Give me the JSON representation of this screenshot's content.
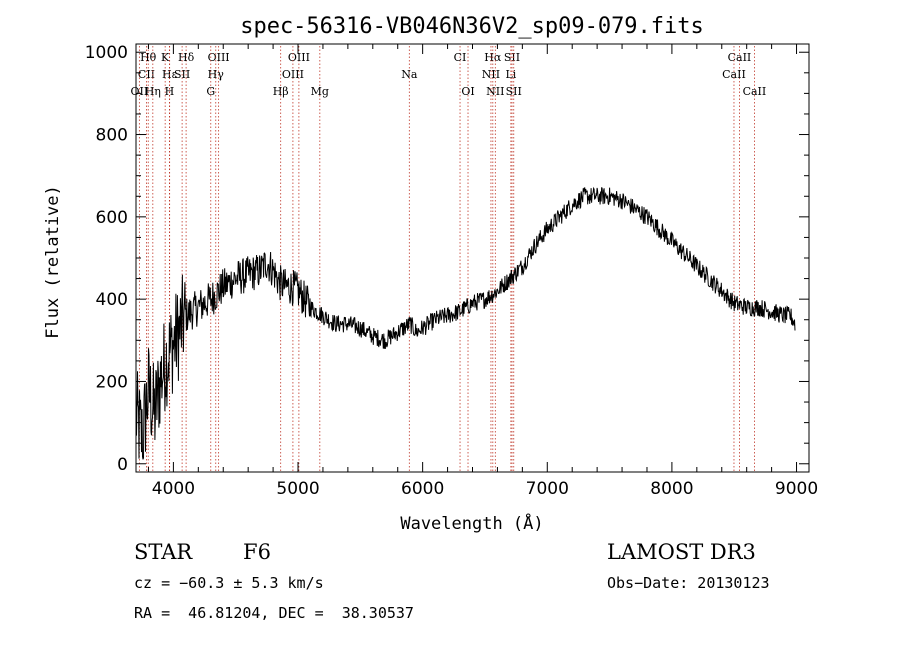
{
  "chart_data": {
    "type": "line",
    "title": "spec-56316-VB046N36V2_sp09-079.fits",
    "xlabel": "Wavelength (Å)",
    "ylabel": "Flux (relative)",
    "xlim": [
      3700,
      9100
    ],
    "ylim": [
      -20,
      1020
    ],
    "x_ticks": [
      4000,
      5000,
      6000,
      7000,
      8000,
      9000
    ],
    "y_ticks": [
      0,
      200,
      400,
      600,
      800,
      1000
    ],
    "series": [
      {
        "name": "flux",
        "x": [
          3700,
          3750,
          3800,
          3850,
          3900,
          3950,
          4000,
          4100,
          4200,
          4300,
          4400,
          4500,
          4600,
          4700,
          4750,
          4800,
          4850,
          4900,
          4950,
          5000,
          5100,
          5200,
          5300,
          5400,
          5500,
          5600,
          5700,
          5800,
          5900,
          5950,
          6000,
          6100,
          6200,
          6300,
          6400,
          6500,
          6600,
          6700,
          6800,
          6900,
          7000,
          7100,
          7200,
          7300,
          7400,
          7500,
          7600,
          7700,
          7800,
          7900,
          8000,
          8100,
          8200,
          8300,
          8400,
          8500,
          8600,
          8700,
          8800,
          8900,
          8950,
          8990
        ],
        "y": [
          120,
          60,
          180,
          120,
          210,
          260,
          290,
          360,
          380,
          400,
          430,
          450,
          460,
          470,
          490,
          470,
          440,
          430,
          430,
          420,
          380,
          360,
          340,
          340,
          330,
          310,
          300,
          320,
          340,
          320,
          330,
          350,
          360,
          370,
          390,
          400,
          420,
          450,
          480,
          530,
          570,
          600,
          630,
          650,
          650,
          650,
          640,
          620,
          600,
          570,
          540,
          510,
          480,
          450,
          420,
          390,
          380,
          380,
          370,
          360,
          360,
          340
        ]
      }
    ],
    "spectral_lines": [
      {
        "label": "Hθ",
        "x": 3798,
        "row": 0
      },
      {
        "label": "K",
        "x": 3934,
        "row": 0
      },
      {
        "label": "Hδ",
        "x": 4102,
        "row": 0
      },
      {
        "label": "OIII",
        "x": 4363,
        "row": 0
      },
      {
        "label": "OIII",
        "x": 5007,
        "row": 0
      },
      {
        "label": "CI",
        "x": 6300,
        "row": 0
      },
      {
        "label": "Hα",
        "x": 6563,
        "row": 0
      },
      {
        "label": "SII",
        "x": 6717,
        "row": 0
      },
      {
        "label": "CaII",
        "x": 8542,
        "row": 0
      },
      {
        "label": "CII",
        "x": 3784,
        "row": 1
      },
      {
        "label": "Hε",
        "x": 3970,
        "row": 1
      },
      {
        "label": "SII",
        "x": 4070,
        "row": 1
      },
      {
        "label": "Hγ",
        "x": 4340,
        "row": 1
      },
      {
        "label": "OIII",
        "x": 4959,
        "row": 1
      },
      {
        "label": "Na",
        "x": 5893,
        "row": 1
      },
      {
        "label": "NII",
        "x": 6548,
        "row": 1
      },
      {
        "label": "Li",
        "x": 6708,
        "row": 1
      },
      {
        "label": "CaII",
        "x": 8498,
        "row": 1
      },
      {
        "label": "OII",
        "x": 3727,
        "row": 2
      },
      {
        "label": "Hη",
        "x": 3835,
        "row": 2
      },
      {
        "label": "H",
        "x": 3968,
        "row": 2
      },
      {
        "label": "G",
        "x": 4300,
        "row": 2
      },
      {
        "label": "Hβ",
        "x": 4861,
        "row": 2
      },
      {
        "label": "Mg",
        "x": 5175,
        "row": 2
      },
      {
        "label": "OI",
        "x": 6364,
        "row": 2
      },
      {
        "label": "NII",
        "x": 6583,
        "row": 2
      },
      {
        "label": "SII",
        "x": 6731,
        "row": 2
      },
      {
        "label": "CaII",
        "x": 8662,
        "row": 2
      }
    ]
  },
  "info": {
    "object_class": "STAR",
    "subclass": "F6",
    "survey": "LAMOST DR3",
    "cz": "cz = −60.3 ± 5.3 km/s",
    "obs_date": "Obs−Date: 20130123",
    "radec": "RA =  46.81204, DEC =  38.30537"
  }
}
